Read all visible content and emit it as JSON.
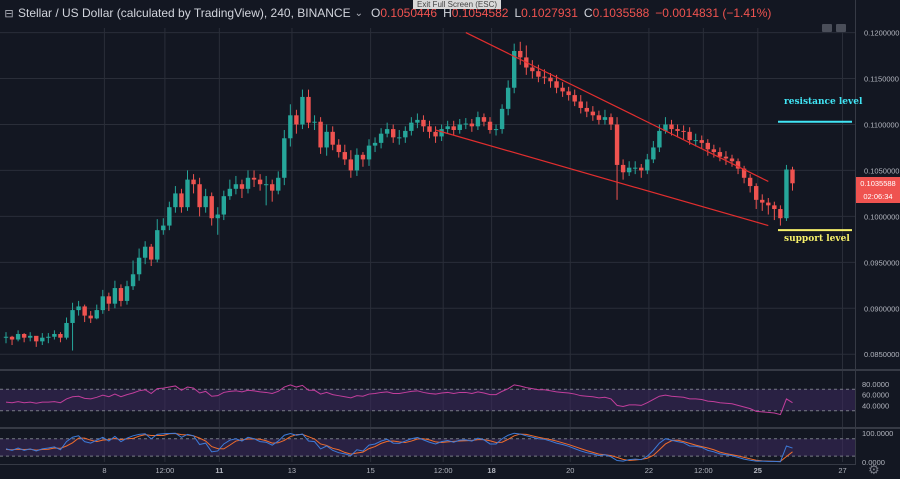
{
  "header": {
    "collapse_glyph": "⊟",
    "title": "Stellar / US Dollar (calculated by TradingView), 240, BINANCE",
    "caret": "⌄",
    "open_label": "O",
    "open": "0.1050446",
    "high_label": "H",
    "high": "0.1054582",
    "low_label": "L",
    "low": "0.1027931",
    "close_label": "C",
    "close": "0.1035588",
    "change": "−0.0014831 (−1.41%)",
    "tooltip": "Exit Full Screen (ESC)"
  },
  "last_price": {
    "value": "0.1035588",
    "countdown": "02:06:34",
    "color": "#ef5350"
  },
  "annotations": {
    "resistance": {
      "label": "resistance level",
      "color": "#41e5f5"
    },
    "support": {
      "label": "support level",
      "color": "#f6f06a"
    }
  },
  "icons": {
    "settings": "gear-icon",
    "collapse": "minus-square-icon"
  },
  "colors": {
    "background": "#131722",
    "grid": "#2a2e39",
    "up": "#26a69a",
    "down": "#ef5350",
    "trendline": "#e22e2e",
    "rsi": "#c23e9c",
    "stoch_k": "#3d7bd9",
    "stoch_d": "#ef6c2c",
    "band": "#3c2a5f"
  },
  "chart_data": [
    {
      "type": "candlestick",
      "symbol": "XLMUSD",
      "interval": "240",
      "ylim": [
        0.0835,
        0.1205
      ],
      "yticks": [
        "0.1200000",
        "0.1150000",
        "0.1100000",
        "0.1050000",
        "0.1000000",
        "0.0950000",
        "0.0900000",
        "0.0850000"
      ],
      "xticks": [
        "8",
        "12:00",
        "11",
        "13",
        "15",
        "12:00",
        "18",
        "20",
        "22",
        "12:00",
        "25",
        "27"
      ],
      "xticks_bold": [
        "11",
        "18",
        "25"
      ],
      "close": [
        0.0869,
        0.0866,
        0.0872,
        0.0868,
        0.087,
        0.0864,
        0.0868,
        0.0869,
        0.0872,
        0.0868,
        0.0884,
        0.0898,
        0.0902,
        0.0892,
        0.0889,
        0.0898,
        0.0913,
        0.0905,
        0.0922,
        0.0908,
        0.0924,
        0.0937,
        0.0955,
        0.0967,
        0.0953,
        0.0985,
        0.099,
        0.101,
        0.1025,
        0.101,
        0.104,
        0.1035,
        0.101,
        0.1022,
        0.0998,
        0.1002,
        0.1022,
        0.103,
        0.1035,
        0.103,
        0.1042,
        0.104,
        0.1035,
        0.1035,
        0.1028,
        0.1042,
        0.1085,
        0.111,
        0.11,
        0.113,
        0.1102,
        0.1103,
        0.1075,
        0.1092,
        0.1078,
        0.107,
        0.1062,
        0.105,
        0.1067,
        0.1062,
        0.1077,
        0.108,
        0.109,
        0.1095,
        0.1086,
        0.1086,
        0.1093,
        0.1102,
        0.1105,
        0.1098,
        0.1092,
        0.1087,
        0.1095,
        0.1098,
        0.1094,
        0.11,
        0.1101,
        0.1098,
        0.1108,
        0.1103,
        0.1094,
        0.1095,
        0.1117,
        0.114,
        0.118,
        0.1173,
        0.1162,
        0.1158,
        0.1152,
        0.1151,
        0.1147,
        0.114,
        0.1136,
        0.1132,
        0.1125,
        0.1118,
        0.1114,
        0.111,
        0.1105,
        0.1108,
        0.11,
        0.1056,
        0.1048,
        0.1053,
        0.1053,
        0.105,
        0.1062,
        0.1075,
        0.1093,
        0.11,
        0.1095,
        0.1093,
        0.1092,
        0.1083,
        0.1083,
        0.108,
        0.1073,
        0.107,
        0.1065,
        0.1063,
        0.106,
        0.1052,
        0.1042,
        0.1033,
        0.1018,
        0.1015,
        0.1012,
        0.1008,
        0.0998,
        0.1051,
        0.1036
      ],
      "high": [
        0.0874,
        0.087,
        0.0876,
        0.0873,
        0.0874,
        0.0869,
        0.0873,
        0.0873,
        0.0876,
        0.0874,
        0.089,
        0.0906,
        0.0908,
        0.0904,
        0.0897,
        0.0904,
        0.092,
        0.0917,
        0.093,
        0.0926,
        0.093,
        0.0952,
        0.0965,
        0.0973,
        0.097,
        0.0997,
        0.0998,
        0.1016,
        0.1033,
        0.103,
        0.105,
        0.1046,
        0.1042,
        0.103,
        0.1026,
        0.101,
        0.1028,
        0.104,
        0.1044,
        0.104,
        0.105,
        0.105,
        0.1046,
        0.1044,
        0.104,
        0.1049,
        0.1094,
        0.1122,
        0.1116,
        0.1138,
        0.1138,
        0.111,
        0.1108,
        0.11,
        0.1098,
        0.1084,
        0.1078,
        0.1072,
        0.1074,
        0.107,
        0.1084,
        0.1086,
        0.1096,
        0.1102,
        0.11,
        0.1094,
        0.1098,
        0.1108,
        0.1112,
        0.111,
        0.1104,
        0.1098,
        0.11,
        0.1104,
        0.1104,
        0.1106,
        0.1107,
        0.1106,
        0.1114,
        0.1112,
        0.1108,
        0.11,
        0.1122,
        0.1148,
        0.1188,
        0.119,
        0.1186,
        0.117,
        0.1165,
        0.116,
        0.1156,
        0.1154,
        0.1146,
        0.1141,
        0.1138,
        0.1132,
        0.1125,
        0.112,
        0.1115,
        0.1116,
        0.1112,
        0.1108,
        0.1062,
        0.106,
        0.106,
        0.1057,
        0.1068,
        0.1082,
        0.11,
        0.1108,
        0.1105,
        0.11,
        0.1099,
        0.1097,
        0.109,
        0.1088,
        0.1084,
        0.1078,
        0.1075,
        0.1071,
        0.1067,
        0.1063,
        0.1055,
        0.1046,
        0.1036,
        0.1024,
        0.102,
        0.1016,
        0.1012,
        0.1056,
        0.1054
      ],
      "low": [
        0.0862,
        0.086,
        0.0864,
        0.0863,
        0.0864,
        0.0858,
        0.086,
        0.0862,
        0.0866,
        0.0863,
        0.0866,
        0.0854,
        0.0892,
        0.0885,
        0.0884,
        0.0888,
        0.0894,
        0.0897,
        0.09,
        0.0902,
        0.0904,
        0.092,
        0.093,
        0.0948,
        0.0946,
        0.095,
        0.098,
        0.0985,
        0.1004,
        0.1004,
        0.1006,
        0.1025,
        0.1,
        0.1004,
        0.099,
        0.098,
        0.0996,
        0.1018,
        0.1024,
        0.102,
        0.1025,
        0.1032,
        0.1028,
        0.1012,
        0.1016,
        0.1024,
        0.1034,
        0.1076,
        0.109,
        0.1095,
        0.1096,
        0.1094,
        0.1068,
        0.1066,
        0.1072,
        0.1064,
        0.1056,
        0.1042,
        0.1044,
        0.1054,
        0.1055,
        0.107,
        0.1074,
        0.1086,
        0.108,
        0.1078,
        0.108,
        0.1088,
        0.1096,
        0.1092,
        0.1085,
        0.108,
        0.1082,
        0.109,
        0.1088,
        0.109,
        0.1095,
        0.1092,
        0.1094,
        0.1098,
        0.109,
        0.1088,
        0.109,
        0.111,
        0.1134,
        0.1165,
        0.1154,
        0.115,
        0.1146,
        0.1144,
        0.114,
        0.1134,
        0.113,
        0.1126,
        0.112,
        0.1112,
        0.1108,
        0.1104,
        0.11,
        0.11,
        0.1094,
        0.1018,
        0.104,
        0.1044,
        0.1046,
        0.1042,
        0.1046,
        0.1058,
        0.107,
        0.109,
        0.1088,
        0.1086,
        0.1084,
        0.1078,
        0.1076,
        0.1074,
        0.1066,
        0.1064,
        0.106,
        0.1056,
        0.1054,
        0.1046,
        0.1036,
        0.1026,
        0.1008,
        0.1006,
        0.1002,
        0.0996,
        0.099,
        0.0995,
        0.1028
      ]
    },
    {
      "type": "line",
      "name": "RSI",
      "ylim": [
        0,
        100
      ],
      "yticks": [
        "80.0000",
        "60.0000",
        "40.0000"
      ],
      "bands": [
        30,
        70
      ],
      "values": [
        46,
        45,
        47,
        45,
        46,
        44,
        46,
        46,
        47,
        45,
        52,
        56,
        57,
        53,
        52,
        55,
        59,
        56,
        61,
        56,
        60,
        63,
        67,
        69,
        62,
        71,
        72,
        74,
        76,
        68,
        74,
        72,
        63,
        66,
        57,
        58,
        64,
        66,
        67,
        65,
        68,
        67,
        65,
        64,
        62,
        66,
        74,
        78,
        74,
        77,
        68,
        68,
        61,
        64,
        60,
        58,
        56,
        54,
        58,
        57,
        61,
        62,
        64,
        65,
        62,
        62,
        64,
        66,
        67,
        64,
        62,
        61,
        63,
        64,
        62,
        64,
        64,
        62,
        65,
        63,
        60,
        60,
        66,
        71,
        78,
        76,
        73,
        71,
        69,
        69,
        67,
        65,
        64,
        63,
        61,
        58,
        57,
        56,
        54,
        55,
        52,
        40,
        38,
        41,
        41,
        40,
        45,
        51,
        57,
        59,
        57,
        56,
        55,
        52,
        52,
        51,
        48,
        47,
        45,
        44,
        43,
        40,
        37,
        34,
        29,
        28,
        27,
        26,
        23,
        52,
        45
      ]
    },
    {
      "type": "line",
      "name": "Stoch",
      "ylim": [
        0,
        110
      ],
      "yticks": [
        "100.0000",
        "0.0000"
      ],
      "bands": [
        20,
        80
      ],
      "k": [
        45,
        40,
        48,
        40,
        45,
        38,
        45,
        48,
        52,
        42,
        70,
        85,
        90,
        70,
        65,
        75,
        85,
        72,
        88,
        70,
        82,
        90,
        95,
        97,
        80,
        95,
        97,
        98,
        99,
        85,
        95,
        90,
        60,
        65,
        35,
        38,
        62,
        75,
        80,
        72,
        85,
        80,
        70,
        68,
        58,
        72,
        92,
        98,
        92,
        96,
        72,
        70,
        45,
        55,
        40,
        32,
        28,
        22,
        42,
        38,
        58,
        62,
        72,
        78,
        65,
        64,
        72,
        80,
        84,
        76,
        68,
        62,
        70,
        74,
        68,
        75,
        76,
        72,
        82,
        76,
        62,
        62,
        80,
        92,
        99,
        96,
        90,
        85,
        80,
        78,
        72,
        65,
        60,
        54,
        46,
        38,
        32,
        28,
        22,
        25,
        18,
        5,
        3,
        8,
        10,
        8,
        20,
        40,
        65,
        80,
        75,
        70,
        66,
        55,
        54,
        50,
        40,
        35,
        28,
        25,
        22,
        16,
        10,
        6,
        3,
        3,
        2,
        2,
        1,
        55,
        48
      ],
      "d": [
        43,
        42,
        44,
        43,
        44,
        41,
        43,
        44,
        48,
        47,
        55,
        66,
        82,
        82,
        75,
        70,
        75,
        77,
        81,
        77,
        80,
        81,
        89,
        94,
        91,
        91,
        91,
        97,
        98,
        94,
        93,
        90,
        82,
        72,
        53,
        46,
        45,
        58,
        72,
        76,
        79,
        79,
        78,
        73,
        65,
        66,
        74,
        87,
        94,
        95,
        87,
        79,
        62,
        57,
        47,
        42,
        33,
        27,
        31,
        34,
        46,
        53,
        64,
        71,
        72,
        69,
        67,
        72,
        79,
        80,
        76,
        69,
        67,
        69,
        71,
        72,
        73,
        74,
        77,
        77,
        73,
        67,
        68,
        78,
        90,
        96,
        95,
        90,
        85,
        81,
        77,
        72,
        66,
        60,
        53,
        46,
        39,
        33,
        27,
        25,
        22,
        16,
        9,
        5,
        7,
        9,
        13,
        23,
        42,
        62,
        73,
        75,
        70,
        64,
        58,
        53,
        48,
        42,
        34,
        29,
        25,
        21,
        16,
        11,
        6,
        4,
        3,
        2,
        2,
        19,
        35
      ]
    }
  ]
}
